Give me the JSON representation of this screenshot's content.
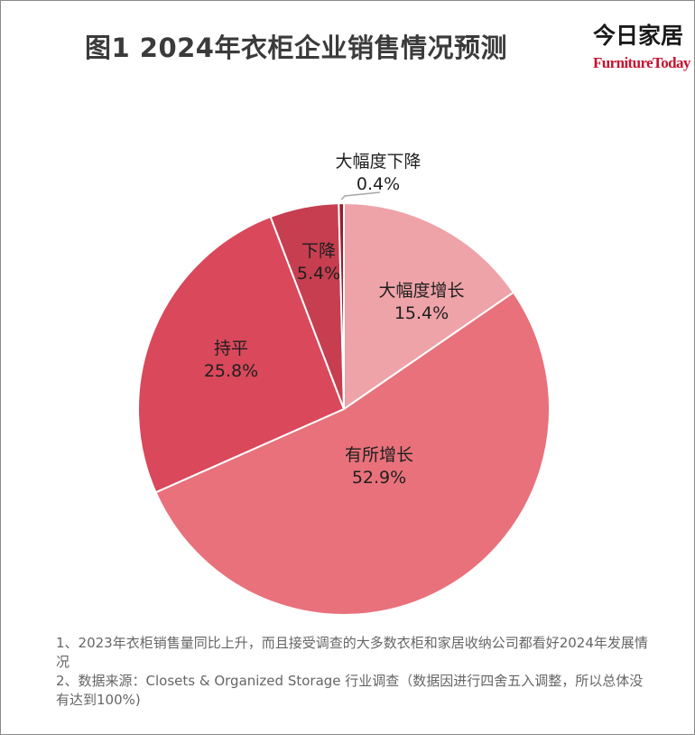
{
  "title": "图1  2024年衣柜企业销售情况预测",
  "brand": {
    "cn": "今日家居",
    "en": "FurnitureToday"
  },
  "chart_data": {
    "type": "pie",
    "title": "2024年衣柜企业销售情况预测",
    "start": "12 o'clock",
    "direction": "clockwise",
    "slices": [
      {
        "label": "大幅度增长",
        "value": 15.4,
        "display": "15.4%",
        "color": "#eea3a8"
      },
      {
        "label": "有所增长",
        "value": 52.9,
        "display": "52.9%",
        "color": "#e8717b"
      },
      {
        "label": "持平",
        "value": 25.8,
        "display": "25.8%",
        "color": "#d9485b"
      },
      {
        "label": "下降",
        "value": 5.4,
        "display": "5.4%",
        "color": "#c63e50"
      },
      {
        "label": "大幅度下降",
        "value": 0.4,
        "display": "0.4%",
        "color": "#9b1c2f"
      }
    ]
  },
  "notes": [
    "1、2023年衣柜销售量同比上升，而且接受调查的大多数衣柜和家居收纳公司都看好2024年发展情况",
    "2、数据来源：Closets & Organized Storage 行业调查（数据因进行四舍五入调整，所以总体没有达到100%)"
  ]
}
